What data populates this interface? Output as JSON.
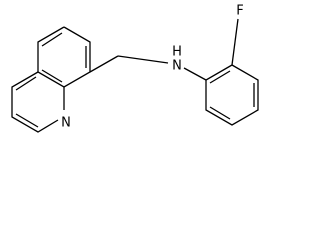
{
  "atoms": {
    "fluorine": "F",
    "amine_hydrogen": "H",
    "amine_nitrogen": "N",
    "ring_nitrogen": "N"
  }
}
